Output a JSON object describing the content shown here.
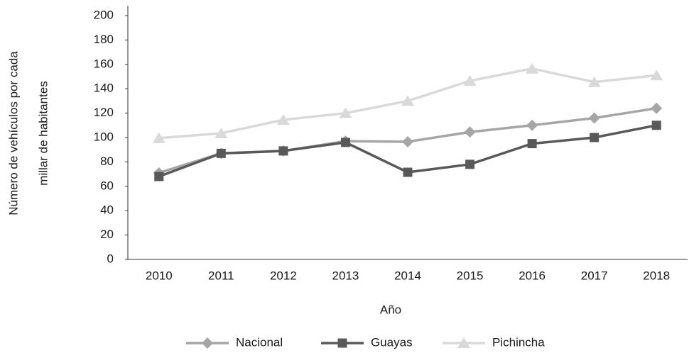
{
  "chart_data": {
    "type": "line",
    "categories": [
      "2010",
      "2011",
      "2012",
      "2013",
      "2014",
      "2015",
      "2016",
      "2017",
      "2018"
    ],
    "series": [
      {
        "name": "Nacional",
        "color": "#a6a6a6",
        "marker": "diamond",
        "values": [
          71,
          87,
          89,
          97,
          96.5,
          104.5,
          110,
          116,
          124
        ]
      },
      {
        "name": "Guayas",
        "color": "#595959",
        "marker": "square",
        "values": [
          68,
          87,
          89,
          96,
          71.5,
          78,
          95,
          100,
          110
        ]
      },
      {
        "name": "Pichincha",
        "color": "#d9d9d9",
        "marker": "triangle",
        "values": [
          99.5,
          103.5,
          114.5,
          120,
          130,
          146.5,
          156.5,
          145.5,
          151
        ]
      }
    ],
    "ylim": [
      0,
      200
    ],
    "yticks": [
      0,
      20,
      40,
      60,
      80,
      100,
      120,
      140,
      160,
      180,
      200
    ],
    "ylabel": [
      "Número de vehículos por cada",
      "millar de habitantes"
    ],
    "xlabel": "Año",
    "grid": false,
    "legend": "bottom"
  }
}
